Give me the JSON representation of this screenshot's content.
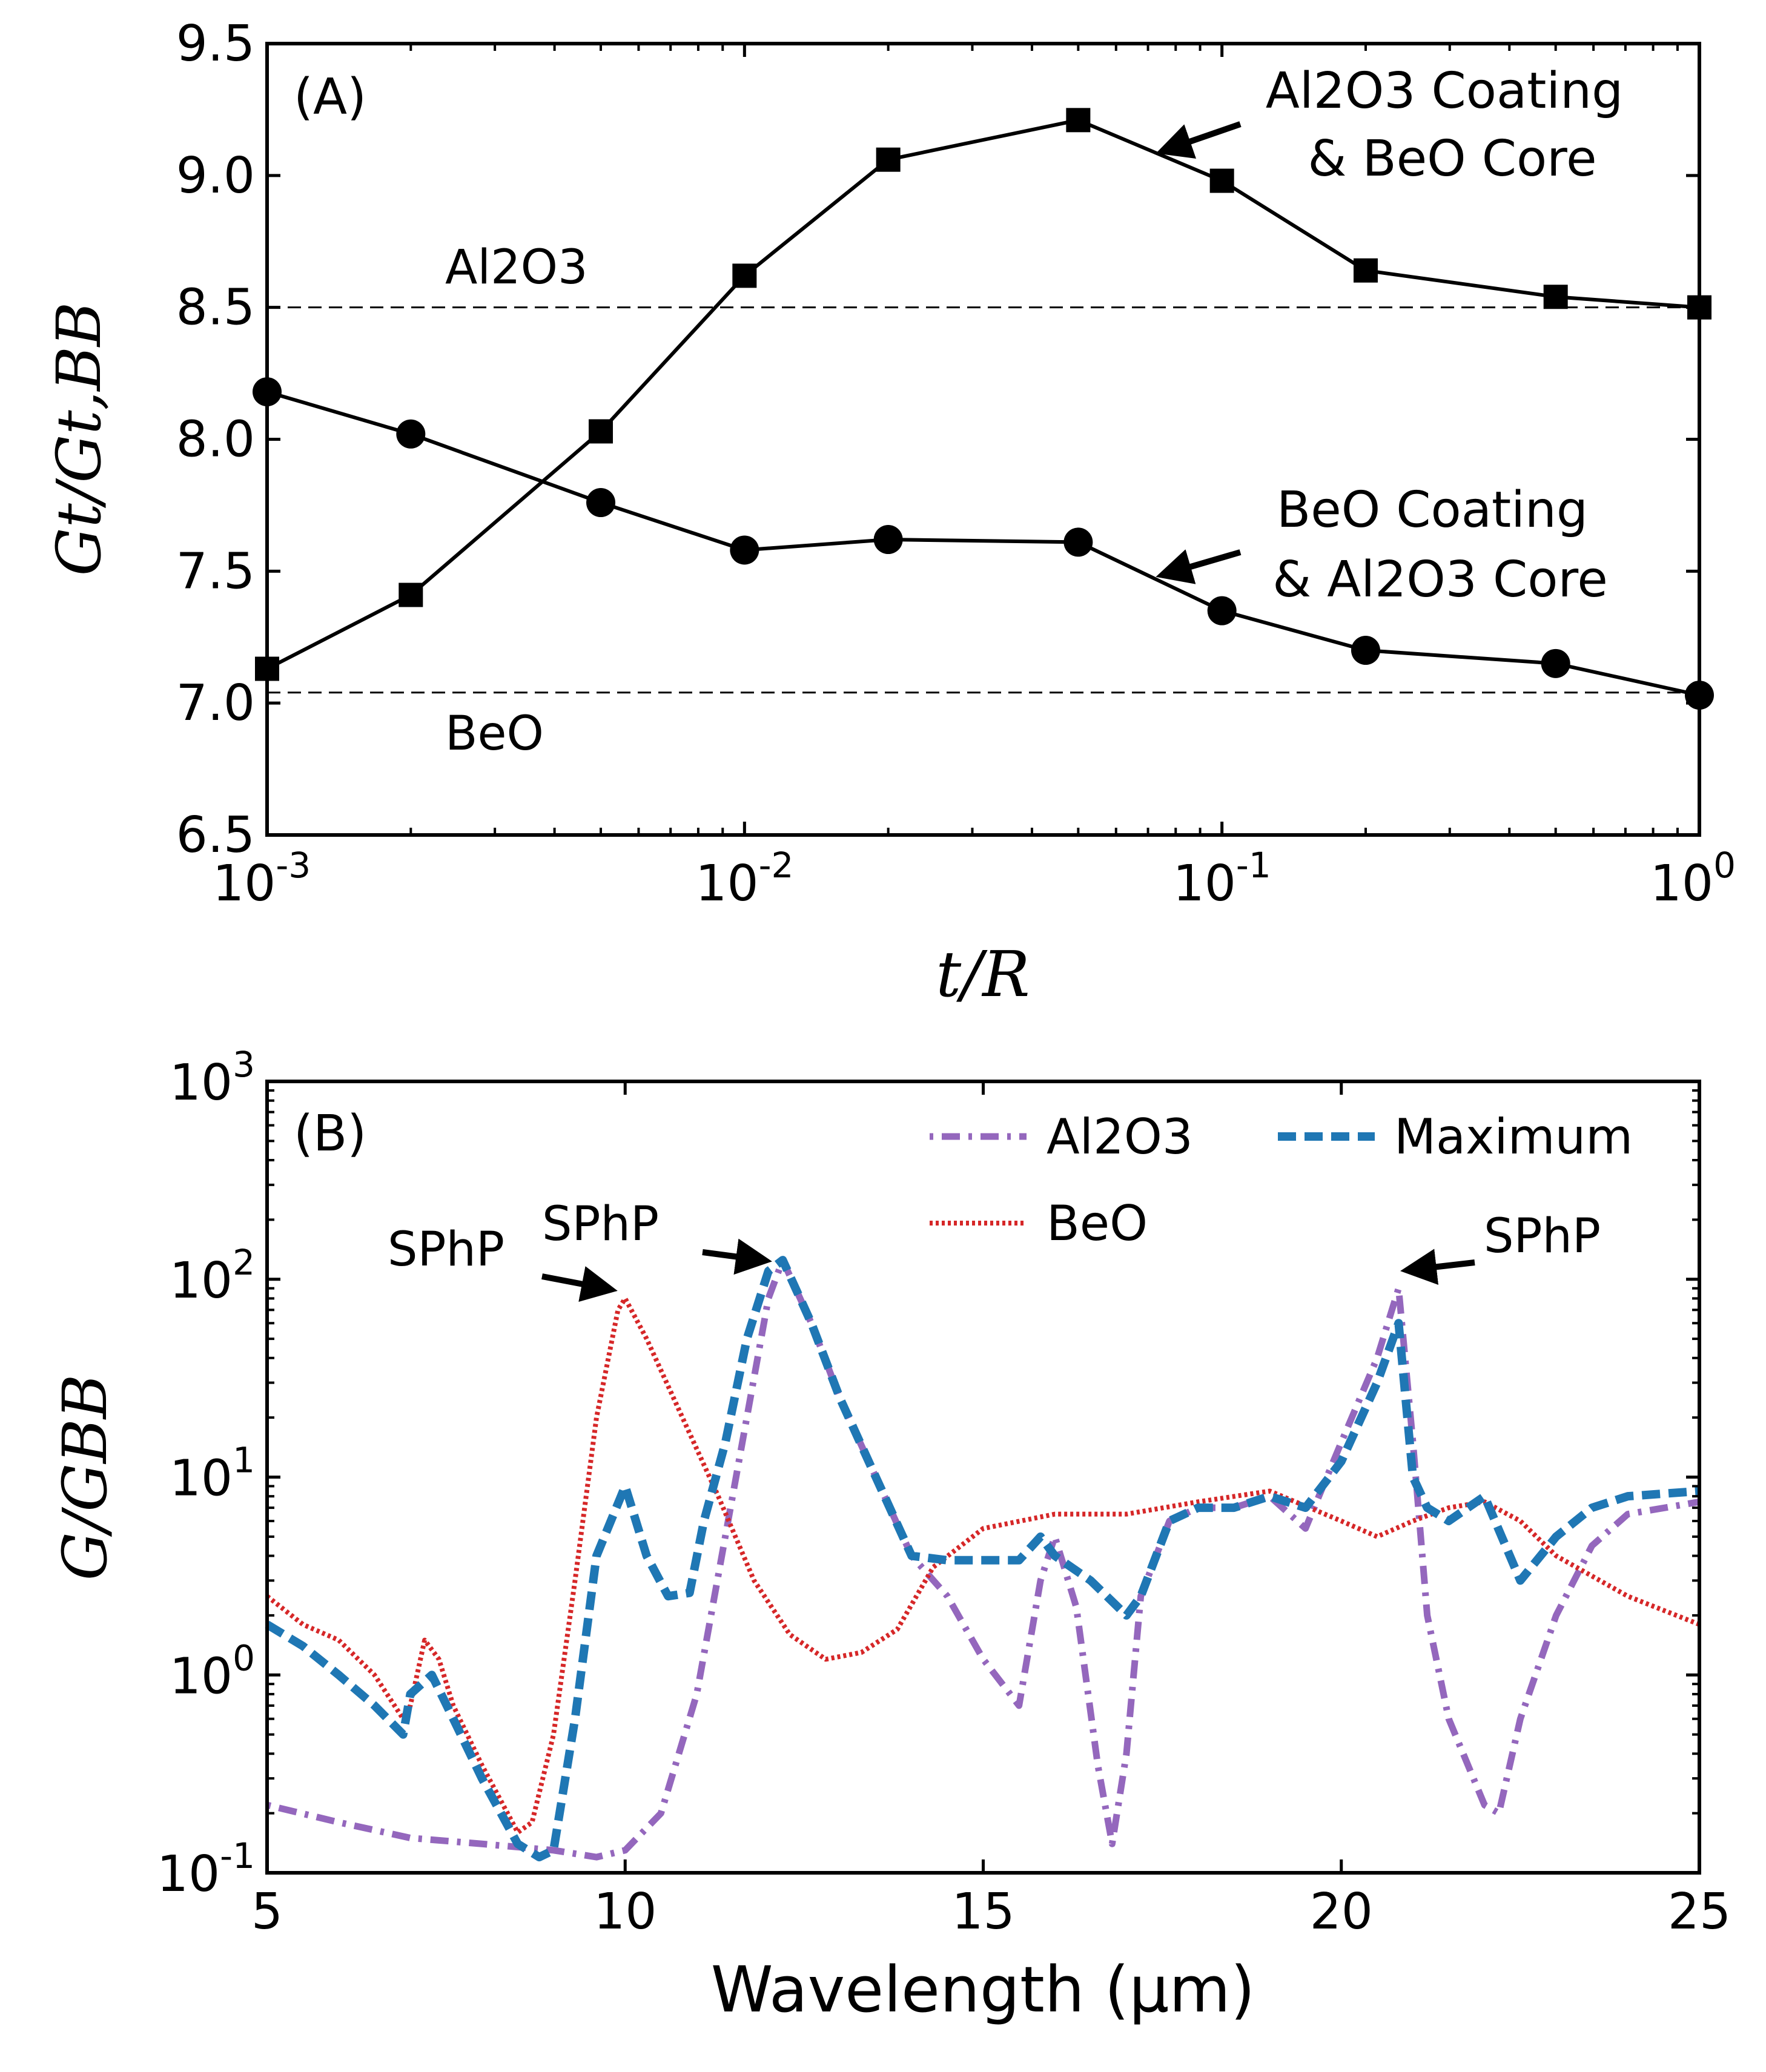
{
  "chart_data": [
    {
      "id": "A",
      "type": "line",
      "panel_label": "(A)",
      "xlabel": "t/R",
      "ylabel": "Gt/Gt,BB",
      "xscale": "log",
      "xlim": [
        0.001,
        1
      ],
      "ylim": [
        6.5,
        9.5
      ],
      "x_ticks": [
        {
          "value": 0.001,
          "base": "10",
          "exp": "-3"
        },
        {
          "value": 0.01,
          "base": "10",
          "exp": "-2"
        },
        {
          "value": 0.1,
          "base": "10",
          "exp": "-1"
        },
        {
          "value": 1,
          "base": "10",
          "exp": "0"
        }
      ],
      "y_ticks": [
        "6.5",
        "7.0",
        "7.5",
        "8.0",
        "8.5",
        "9.0",
        "9.5"
      ],
      "reference_lines": [
        {
          "label": "Al2O3",
          "y": 8.5,
          "style": "dashed"
        },
        {
          "label": "BeO",
          "y": 7.04,
          "style": "dashed"
        }
      ],
      "series": [
        {
          "label_line1": "Al2O3 Coating",
          "label_line2": "& BeO Core",
          "marker": "square",
          "color": "#000000",
          "x": [
            0.001,
            0.002,
            0.005,
            0.01,
            0.02,
            0.05,
            0.1,
            0.2,
            0.5,
            1
          ],
          "y": [
            7.13,
            7.41,
            8.03,
            8.62,
            9.06,
            9.21,
            8.98,
            8.64,
            8.54,
            8.5
          ]
        },
        {
          "label_line1": "BeO Coating",
          "label_line2": "& Al2O3 Core",
          "marker": "circle",
          "color": "#000000",
          "x": [
            0.001,
            0.002,
            0.005,
            0.01,
            0.02,
            0.05,
            0.1,
            0.2,
            0.5,
            1
          ],
          "y": [
            8.18,
            8.02,
            7.76,
            7.58,
            7.62,
            7.61,
            7.35,
            7.2,
            7.15,
            7.03
          ]
        }
      ]
    },
    {
      "id": "B",
      "type": "line",
      "panel_label": "(B)",
      "xlabel": "Wavelength (μm)",
      "ylabel": "G/GBB",
      "yscale": "log",
      "xlim": [
        5,
        25
      ],
      "ylim": [
        0.1,
        1000
      ],
      "x_ticks": [
        "5",
        "10",
        "15",
        "20",
        "25"
      ],
      "y_ticks": [
        {
          "value": 0.1,
          "base": "10",
          "exp": "-1"
        },
        {
          "value": 1,
          "base": "10",
          "exp": "0"
        },
        {
          "value": 10,
          "base": "10",
          "exp": "1"
        },
        {
          "value": 100,
          "base": "10",
          "exp": "2"
        },
        {
          "value": 1000,
          "base": "10",
          "exp": "3"
        }
      ],
      "annotations": [
        "SPhP",
        "SPhP",
        "SPhP"
      ],
      "series": [
        {
          "name": "Al2O3",
          "color": "#9467bd",
          "style": "dashdot",
          "x": [
            5,
            6,
            7,
            8,
            9,
            9.6,
            10,
            10.5,
            11,
            11.5,
            12,
            12.2,
            12.6,
            13,
            13.5,
            14,
            14.5,
            15,
            15.5,
            15.8,
            16,
            16.3,
            16.6,
            16.8,
            17,
            17.2,
            17.6,
            18,
            18.5,
            19,
            19.5,
            20,
            20.5,
            20.8,
            21,
            21.2,
            21.5,
            22,
            22.2,
            22.5,
            23,
            23.5,
            24,
            25
          ],
          "y": [
            0.22,
            0.18,
            0.15,
            0.14,
            0.13,
            0.12,
            0.13,
            0.2,
            0.8,
            8,
            80,
            125,
            60,
            25,
            10,
            4,
            2.5,
            1.2,
            0.7,
            3,
            5,
            2.2,
            0.35,
            0.14,
            0.4,
            2.5,
            6,
            7,
            7,
            8,
            5.5,
            15,
            40,
            90,
            15,
            2,
            0.6,
            0.22,
            0.2,
            0.6,
            2,
            4.5,
            6.5,
            7.5
          ]
        },
        {
          "name": "BeO",
          "color": "#d62728",
          "style": "dotted",
          "x": [
            5,
            5.5,
            6,
            6.5,
            6.9,
            7,
            7.2,
            7.4,
            7.6,
            8,
            8.5,
            8.7,
            9,
            9.3,
            9.6,
            9.9,
            10,
            10.3,
            10.8,
            11.3,
            11.8,
            12.3,
            12.8,
            13.3,
            13.8,
            14.3,
            15,
            16,
            17,
            18,
            19,
            20,
            20.5,
            21,
            21.5,
            22,
            22.5,
            23,
            24,
            25
          ],
          "y": [
            2.5,
            1.8,
            1.5,
            1.0,
            0.6,
            0.7,
            1.5,
            1.2,
            0.7,
            0.35,
            0.16,
            0.18,
            0.5,
            3,
            20,
            70,
            80,
            50,
            20,
            8,
            3,
            1.6,
            1.2,
            1.3,
            1.7,
            3.5,
            5.5,
            6.5,
            6.5,
            7.5,
            8.5,
            6,
            5,
            6,
            7,
            7.5,
            6,
            4,
            2.5,
            1.8
          ]
        },
        {
          "name": "Maximum",
          "color": "#1f77b4",
          "style": "dashed",
          "x": [
            5,
            5.5,
            6,
            6.5,
            6.9,
            7,
            7.3,
            7.6,
            8,
            8.5,
            8.8,
            9,
            9.3,
            9.6,
            10,
            10.3,
            10.6,
            10.9,
            11.1,
            11.4,
            11.7,
            12,
            12.2,
            12.6,
            13,
            13.5,
            14,
            14.5,
            15,
            15.5,
            15.8,
            16,
            16.5,
            17,
            17.2,
            17.6,
            18,
            18.5,
            19,
            19.5,
            20,
            20.5,
            20.8,
            21,
            21.2,
            21.5,
            22,
            22.5,
            23,
            23.5,
            24,
            25
          ],
          "y": [
            1.8,
            1.4,
            1.0,
            0.7,
            0.5,
            0.8,
            1.0,
            0.6,
            0.3,
            0.14,
            0.12,
            0.13,
            0.6,
            4,
            9,
            4,
            2.5,
            2.6,
            6,
            15,
            50,
            110,
            125,
            60,
            25,
            10,
            4,
            3.8,
            3.8,
            3.8,
            5,
            4,
            3,
            2,
            2.5,
            6,
            7,
            7,
            8,
            7,
            12,
            30,
            60,
            10,
            7,
            6,
            8,
            3,
            5,
            7,
            8,
            8.5
          ]
        }
      ]
    }
  ]
}
